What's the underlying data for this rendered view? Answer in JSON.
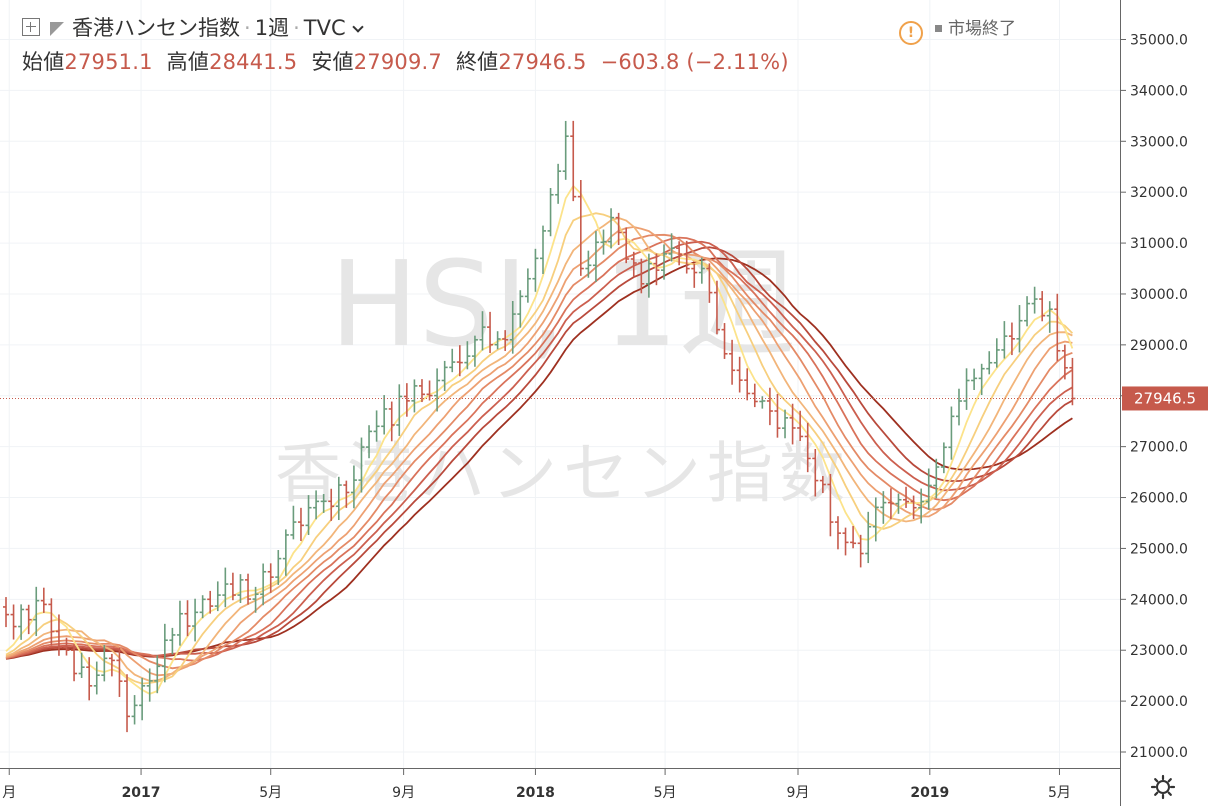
{
  "header": {
    "symbol_name": "香港ハンセン指数",
    "interval": "1週",
    "source": "TVC",
    "market_status": "市場終了",
    "icons": [
      "add-symbol-icon",
      "flag-icon",
      "chevron-down-icon",
      "warning-icon",
      "gear-icon"
    ]
  },
  "ohlc": {
    "open_label": "始値",
    "open": "27951.1",
    "high_label": "高値",
    "high": "28441.5",
    "low_label": "安値",
    "low": "27909.7",
    "close_label": "終値",
    "close": "27946.5",
    "change": "−603.8 (−2.11%)"
  },
  "watermark": {
    "line1": "HSI, 1週",
    "line2": "香港ハンセン指数"
  },
  "colors": {
    "up": "#6a9c7c",
    "down": "#c65a4c",
    "ribbon": [
      "#fce38a",
      "#f7cf7e",
      "#f2b57a",
      "#eda072",
      "#e48a66",
      "#d9725a",
      "#cc5f4f",
      "#b94a3c",
      "#9e3020"
    ]
  },
  "chart_data": {
    "type": "ohlc",
    "ylim": [
      20700,
      35800
    ],
    "y_ticks": [
      "35000.0",
      "34000.0",
      "33000.0",
      "32000.0",
      "31000.0",
      "30000.0",
      "29000.0",
      "28000.0",
      "27000.0",
      "26000.0",
      "25000.0",
      "24000.0",
      "23000.0",
      "22000.0",
      "21000.0"
    ],
    "x_ticks": [
      {
        "label": "月",
        "date": "2016-09-01"
      },
      {
        "label": "2017",
        "date": "2017-01-01"
      },
      {
        "label": "5月",
        "date": "2017-05-01"
      },
      {
        "label": "9月",
        "date": "2017-09-01"
      },
      {
        "label": "2018",
        "date": "2018-01-01"
      },
      {
        "label": "5月",
        "date": "2018-05-01"
      },
      {
        "label": "9月",
        "date": "2018-09-01"
      },
      {
        "label": "2019",
        "date": "2019-01-01"
      },
      {
        "label": "5月",
        "date": "2019-05-01"
      }
    ],
    "last_price": 27946.5,
    "last_price_label": "27946.5",
    "anchors": [
      {
        "date": "2016-08-29",
        "close": 23700
      },
      {
        "date": "2016-09-19",
        "close": 23600
      },
      {
        "date": "2016-10-03",
        "close": 23900
      },
      {
        "date": "2016-10-24",
        "close": 23000
      },
      {
        "date": "2016-11-14",
        "close": 22300
      },
      {
        "date": "2016-12-05",
        "close": 22800
      },
      {
        "date": "2016-12-19",
        "close": 21700
      },
      {
        "date": "2017-01-02",
        "close": 22300
      },
      {
        "date": "2017-01-30",
        "close": 23300
      },
      {
        "date": "2017-02-27",
        "close": 24000
      },
      {
        "date": "2017-03-20",
        "close": 24300
      },
      {
        "date": "2017-04-17",
        "close": 24100
      },
      {
        "date": "2017-05-08",
        "close": 24800
      },
      {
        "date": "2017-06-05",
        "close": 25800
      },
      {
        "date": "2017-07-10",
        "close": 26100
      },
      {
        "date": "2017-08-07",
        "close": 27400
      },
      {
        "date": "2017-09-04",
        "close": 27900
      },
      {
        "date": "2017-10-02",
        "close": 28300
      },
      {
        "date": "2017-11-06",
        "close": 29100
      },
      {
        "date": "2017-12-04",
        "close": 29100
      },
      {
        "date": "2018-01-01",
        "close": 30700
      },
      {
        "date": "2018-01-29",
        "close": 33100
      },
      {
        "date": "2018-02-12",
        "close": 30500
      },
      {
        "date": "2018-03-12",
        "close": 31500
      },
      {
        "date": "2018-04-09",
        "close": 30200
      },
      {
        "date": "2018-05-07",
        "close": 30900
      },
      {
        "date": "2018-06-04",
        "close": 30500
      },
      {
        "date": "2018-07-02",
        "close": 28500
      },
      {
        "date": "2018-08-06",
        "close": 27700
      },
      {
        "date": "2018-09-03",
        "close": 27200
      },
      {
        "date": "2018-10-08",
        "close": 25300
      },
      {
        "date": "2018-10-29",
        "close": 24900
      },
      {
        "date": "2018-11-19",
        "close": 25900
      },
      {
        "date": "2018-12-17",
        "close": 25800
      },
      {
        "date": "2019-01-07",
        "close": 26600
      },
      {
        "date": "2019-02-04",
        "close": 28300
      },
      {
        "date": "2019-03-04",
        "close": 28900
      },
      {
        "date": "2019-04-08",
        "close": 29900
      },
      {
        "date": "2019-04-22",
        "close": 29700
      },
      {
        "date": "2019-05-06",
        "close": 28550
      },
      {
        "date": "2019-05-13",
        "close": 27946.5
      }
    ],
    "ribbon_periods": [
      5,
      8,
      11,
      14,
      17,
      20,
      23,
      26,
      30
    ]
  }
}
